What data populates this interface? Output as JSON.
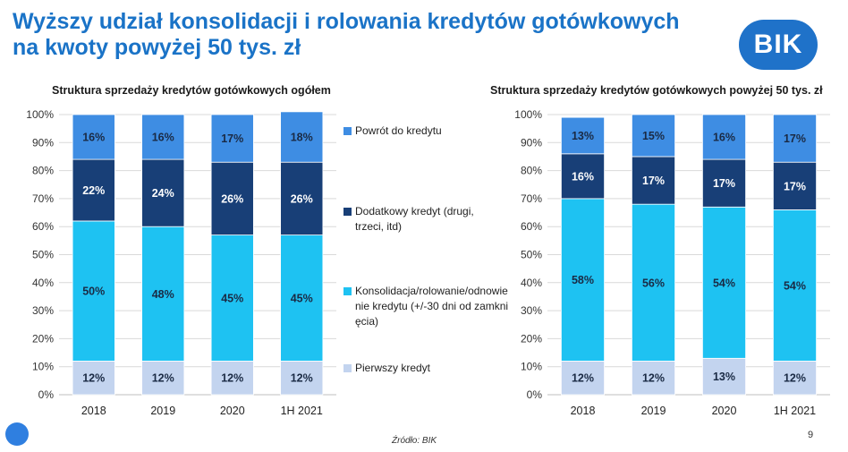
{
  "header": {
    "title_line1": "Wyższy udział konsolidacji i rolowania kredytów gotówkowych",
    "title_line2": "na kwoty powyżej 50 tys. zł",
    "logo_text": "BIK"
  },
  "colors": {
    "first_credit": "#c3d4ef",
    "consolidation": "#1ec2f2",
    "additional": "#183f77",
    "return": "#3e8de3",
    "grid": "#d9d9d9",
    "axis_text": "#333333"
  },
  "legend": [
    {
      "label": "Powrót do kredytu",
      "color": "#3e8de3"
    },
    {
      "label": "Dodatkowy kredyt (drugi, trzeci, itd)",
      "color": "#183f77"
    },
    {
      "label": "Konsolidacja/rolowanie/odnowienie kredytu (+/-30 dni od zamknięcia)",
      "color": "#1ec2f2"
    },
    {
      "label": "Pierwszy kredyt",
      "color": "#c3d4ef"
    }
  ],
  "chart_data": [
    {
      "type": "bar",
      "stacked": true,
      "title": "Struktura sprzedaży kredytów gotówkowych ogółem",
      "categories": [
        "2018",
        "2019",
        "2020",
        "1H 2021"
      ],
      "ylim": [
        0,
        100
      ],
      "yticks": [
        "0%",
        "10%",
        "20%",
        "30%",
        "40%",
        "50%",
        "60%",
        "70%",
        "80%",
        "90%",
        "100%"
      ],
      "grid": true,
      "legend_position": "right",
      "series": [
        {
          "name": "Pierwszy kredyt",
          "values": [
            12,
            12,
            12,
            12
          ],
          "labels": [
            "12%",
            "12%",
            "12%",
            "12%"
          ]
        },
        {
          "name": "Konsolidacja/rolowanie/odnowienie kredytu (+/-30 dni od zamknięcia)",
          "values": [
            50,
            48,
            45,
            45
          ],
          "labels": [
            "50%",
            "48%",
            "45%",
            "45%"
          ]
        },
        {
          "name": "Dodatkowy kredyt (drugi, trzeci, itd)",
          "values": [
            22,
            24,
            26,
            26
          ],
          "labels": [
            "22%",
            "24%",
            "26%",
            "26%"
          ]
        },
        {
          "name": "Powrót do kredytu",
          "values": [
            16,
            16,
            17,
            18
          ],
          "labels": [
            "16%",
            "16%",
            "17%",
            "18%"
          ]
        }
      ]
    },
    {
      "type": "bar",
      "stacked": true,
      "title": "Struktura sprzedaży kredytów gotówkowych powyżej 50 tys. zł",
      "categories": [
        "2018",
        "2019",
        "2020",
        "1H 2021"
      ],
      "ylim": [
        0,
        100
      ],
      "yticks": [
        "0%",
        "10%",
        "20%",
        "30%",
        "40%",
        "50%",
        "60%",
        "70%",
        "80%",
        "90%",
        "100%"
      ],
      "grid": true,
      "series": [
        {
          "name": "Pierwszy kredyt",
          "values": [
            12,
            12,
            13,
            12
          ],
          "labels": [
            "12%",
            "12%",
            "13%",
            "12%"
          ]
        },
        {
          "name": "Konsolidacja/rolowanie/odnowienie kredytu (+/-30 dni od zamknięcia)",
          "values": [
            58,
            56,
            54,
            54
          ],
          "labels": [
            "58%",
            "56%",
            "54%",
            "54%"
          ]
        },
        {
          "name": "Dodatkowy kredyt (drugi, trzeci, itd)",
          "values": [
            16,
            17,
            17,
            17
          ],
          "labels": [
            "16%",
            "17%",
            "17%",
            "17%"
          ]
        },
        {
          "name": "Powrót do kredytu",
          "values": [
            13,
            15,
            16,
            17
          ],
          "labels": [
            "13%",
            "15%",
            "16%",
            "17%"
          ]
        }
      ]
    }
  ],
  "footer": {
    "source": "Źródło: BIK",
    "page_number": "9"
  }
}
